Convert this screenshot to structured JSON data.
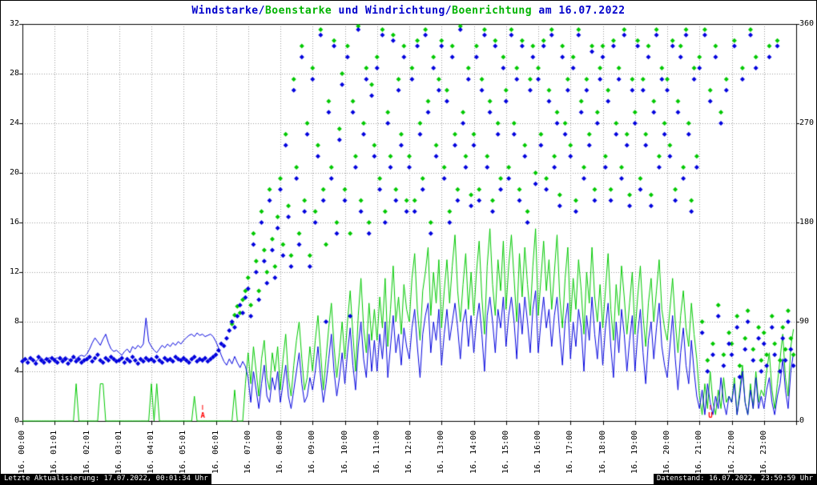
{
  "title": {
    "segments": [
      {
        "text": "Windstarke/",
        "color": "#0000cc"
      },
      {
        "text": "Boenstarke",
        "color": "#00b400"
      },
      {
        "text": " und Windrichtung/",
        "color": "#0000cc"
      },
      {
        "text": "Boenrichtung",
        "color": "#00b400"
      },
      {
        "text": " am 16.07.2022",
        "color": "#0000cc"
      }
    ]
  },
  "footer": {
    "last_update": "Letzte Aktualisierung: 17.07.2022, 00:01:34 Uhr",
    "data_state": "Datenstand: 16.07.2022, 23:59:59 Uhr"
  },
  "chart_data": {
    "type": "mixed",
    "title": "Windstarke/Boenstarke und Windrichtung/Boenrichtung am 16.07.2022",
    "grid": {
      "horizontal": true,
      "vertical": true,
      "style": "dotted"
    },
    "x_axis": {
      "unit": "time",
      "hours": 24,
      "tick_labels": [
        "16. 00:00",
        "16. 01:01",
        "16. 02:01",
        "16. 03:01",
        "16. 04:01",
        "16. 05:01",
        "16. 06:01",
        "16. 07:00",
        "16. 08:00",
        "16. 09:00",
        "16. 10:00",
        "16. 11:00",
        "16. 12:00",
        "16. 13:00",
        "16. 14:00",
        "16. 15:00",
        "16. 16:00",
        "16. 17:00",
        "16. 18:00",
        "16. 19:00",
        "16. 20:00",
        "16. 21:00",
        "16. 22:00",
        "16. 23:00"
      ]
    },
    "y_axis_left": {
      "min": 0,
      "max": 32,
      "ticks": [
        0,
        4,
        8,
        12,
        16,
        20,
        24,
        28,
        32
      ]
    },
    "y_axis_right": {
      "min": 0,
      "max": 360,
      "ticks": [
        0,
        90,
        180,
        270,
        360
      ]
    },
    "annotations": [
      {
        "label": "A",
        "hour": 5.6,
        "color": "#ff0000"
      },
      {
        "label": "U",
        "hour": 21.35,
        "color": "#ff0000"
      }
    ],
    "series": [
      {
        "name": "Windstarke",
        "type": "line",
        "axis": "left",
        "color": "#0000dd",
        "z": 2,
        "interval_minutes": 5,
        "start_minute": 0,
        "values": [
          5,
          5,
          4.9,
          5.1,
          5,
          4.8,
          5,
          5.1,
          4.9,
          5,
          5.1,
          5,
          5,
          5.1,
          4.9,
          5,
          5.2,
          5,
          4.9,
          5.1,
          5,
          5.2,
          5.3,
          5.2,
          5.4,
          5.8,
          6.3,
          6.7,
          6.4,
          6.1,
          6.6,
          7,
          6.3,
          5.8,
          5.6,
          5.7,
          5.5,
          5.3,
          5.6,
          5.8,
          5.5,
          6,
          5.8,
          6.1,
          5.9,
          6.2,
          8.3,
          6.4,
          6,
          5.7,
          5.5,
          5.8,
          6.1,
          5.9,
          6.2,
          6,
          6.3,
          6.1,
          6.4,
          6.2,
          6.5,
          6.7,
          6.9,
          7,
          6.8,
          7.1,
          6.9,
          7,
          6.8,
          6.9,
          7,
          6.8,
          6.4,
          5.9,
          5.3,
          4.8,
          4.5,
          5,
          4.6,
          5.2,
          4.7,
          4.3,
          4.8,
          4.4,
          3.5,
          1.5,
          4,
          2.5,
          1,
          3,
          4.5,
          2,
          1.5,
          3.5,
          2.5,
          4,
          1.5,
          3,
          4.5,
          2,
          1,
          2.5,
          4,
          5.5,
          3,
          1.5,
          2,
          3.5,
          2.5,
          4,
          6,
          3.5,
          1.5,
          3,
          5,
          7,
          4,
          2,
          3.5,
          5.5,
          3,
          5.5,
          7.5,
          4.5,
          2.5,
          6,
          8,
          5,
          3.5,
          7,
          4,
          6.5,
          4,
          7,
          5,
          8,
          3.5,
          6,
          8.5,
          5.5,
          7,
          4.5,
          7.5,
          6,
          5,
          7.5,
          9,
          6,
          3.5,
          7,
          8.5,
          9.5,
          5.5,
          8,
          6.5,
          9,
          4.5,
          7,
          9,
          6.5,
          8,
          9.5,
          7.5,
          5,
          8,
          9,
          6,
          8.5,
          5.5,
          8,
          9.5,
          7,
          4,
          8.5,
          10,
          8,
          5.5,
          9,
          7.5,
          10,
          6,
          8.5,
          10,
          8,
          5,
          9.5,
          7,
          10,
          8,
          5.5,
          9,
          10.5,
          5.5,
          8,
          10,
          7.5,
          9,
          6,
          8.5,
          10,
          7,
          4.5,
          8,
          9.5,
          5,
          8,
          6,
          9,
          7.5,
          4,
          8.5,
          6.5,
          10,
          7,
          5,
          8,
          4.5,
          7.5,
          9.5,
          6,
          3.5,
          8,
          5.5,
          9,
          7,
          4,
          6.5,
          8.5,
          4,
          7,
          9,
          5.5,
          3,
          6.5,
          8,
          5,
          7.5,
          9.5,
          6,
          4.5,
          3.5,
          6,
          8.5,
          5,
          2.5,
          5.5,
          7.5,
          4.5,
          3,
          6.5,
          4,
          2,
          1,
          2.5,
          0.5,
          3,
          1.5,
          0.5,
          2,
          1,
          3.5,
          1.5,
          0.5,
          2,
          1.5,
          3,
          0.5,
          2,
          4,
          1.5,
          0.5,
          2.5,
          1,
          3.5,
          1,
          2,
          1,
          2.5,
          3.5,
          1.5,
          0.5,
          2,
          3,
          5,
          2.5,
          1,
          4,
          5.5
        ]
      },
      {
        "name": "Boenstarke",
        "type": "line",
        "axis": "left",
        "color": "#00c800",
        "z": 1,
        "interval_minutes": 5,
        "start_minute": 0,
        "values": [
          0,
          0,
          0,
          0,
          0,
          0,
          0,
          0,
          0,
          0,
          0,
          0,
          0,
          0,
          0,
          0,
          0,
          0,
          0,
          0,
          3,
          0,
          0,
          0,
          0,
          0,
          0,
          0,
          0,
          3,
          3,
          0,
          0,
          0,
          0,
          0,
          0,
          0,
          0,
          0,
          0,
          0,
          0,
          0,
          0,
          0,
          0,
          0,
          3,
          0,
          3,
          0,
          0,
          0,
          0,
          0,
          0,
          0,
          0,
          0,
          0,
          0,
          0,
          0,
          2,
          0,
          0,
          0,
          0,
          0,
          0,
          0,
          0,
          0,
          0,
          0,
          0,
          0,
          0,
          2.5,
          0,
          0,
          0,
          3,
          5.5,
          3,
          6,
          4,
          2,
          5,
          6.5,
          3.5,
          2.5,
          5.5,
          4,
          6,
          2.5,
          5,
          7,
          3.5,
          2,
          4.5,
          6.5,
          8,
          5,
          2.5,
          3.5,
          6,
          4,
          6.5,
          8.5,
          5.5,
          2.5,
          5,
          7.5,
          9.5,
          6,
          3.5,
          5.5,
          8,
          5,
          8,
          10.5,
          7,
          4,
          8.5,
          11.5,
          7.5,
          5.5,
          9.5,
          6.5,
          9,
          6.5,
          10,
          7.5,
          11.5,
          6,
          9,
          12.5,
          8,
          10,
          7,
          11,
          9,
          8,
          11.5,
          13.5,
          9,
          6.5,
          10.5,
          12,
          14,
          8.5,
          12,
          9.5,
          13,
          7.5,
          10.5,
          13,
          9.5,
          12.5,
          15,
          10.5,
          8,
          11,
          13.5,
          9,
          12,
          8.5,
          12,
          14.5,
          10,
          7,
          12.5,
          15.5,
          11,
          8.5,
          13,
          10.5,
          14.5,
          9,
          12.5,
          15,
          11.5,
          8,
          13.5,
          10,
          14,
          11,
          8.5,
          12.5,
          15.5,
          8.5,
          11.5,
          14.5,
          10.5,
          13,
          9,
          12,
          15,
          10,
          7.5,
          11.5,
          14,
          8,
          11.5,
          9,
          13,
          10.5,
          7,
          12,
          9.5,
          14,
          10,
          8,
          11,
          7.5,
          10.5,
          13.5,
          9,
          6.5,
          11,
          8.5,
          12.5,
          10,
          7,
          9.5,
          12,
          7,
          10,
          12.5,
          8.5,
          6,
          9.5,
          11.5,
          8,
          10.5,
          13,
          9,
          7.5,
          6.5,
          9,
          11.5,
          8,
          5.5,
          8.5,
          10.5,
          7.5,
          6,
          9.5,
          7,
          5,
          2,
          0.5,
          3,
          1,
          4,
          1.5,
          0.5,
          2.5,
          1,
          3.5,
          1.5,
          2,
          1.5,
          3.5,
          0.5,
          2.5,
          4.5,
          1.5,
          0.5,
          3,
          1,
          4,
          1.5,
          2.5,
          2,
          4,
          5.5,
          2.5,
          1,
          3,
          5,
          7,
          3.5,
          2,
          6,
          7.4
        ]
      },
      {
        "name": "Windrichtung",
        "type": "scatter",
        "axis": "right",
        "color": "#0000dd",
        "z": 4,
        "interval_minutes": 5,
        "start_minute": 0,
        "values": [
          54,
          56,
          53,
          57,
          55,
          52,
          58,
          55,
          53,
          56,
          54,
          57,
          55,
          53,
          57,
          54,
          56,
          52,
          55,
          58,
          54,
          56,
          53,
          55,
          56,
          58,
          54,
          57,
          60,
          55,
          53,
          57,
          55,
          58,
          56,
          54,
          55,
          57,
          53,
          56,
          54,
          58,
          55,
          52,
          56,
          54,
          57,
          55,
          56,
          54,
          58,
          55,
          53,
          57,
          55,
          56,
          54,
          58,
          56,
          55,
          57,
          55,
          53,
          56,
          58,
          54,
          56,
          55,
          57,
          54,
          56,
          58,
          60,
          64,
          70,
          68,
          75,
          82,
          90,
          85,
          95,
          105,
          98,
          112,
          120,
          95,
          160,
          135,
          110,
          180,
          145,
          125,
          200,
          155,
          130,
          175,
          210,
          150,
          250,
          185,
          140,
          300,
          220,
          160,
          330,
          190,
          260,
          140,
          310,
          180,
          240,
          350,
          200,
          90,
          280,
          220,
          340,
          170,
          255,
          305,
          200,
          330,
          95,
          280,
          230,
          355,
          190,
          260,
          310,
          170,
          295,
          240,
          320,
          210,
          350,
          180,
          270,
          230,
          345,
          200,
          300,
          250,
          330,
          190,
          230,
          310,
          190,
          340,
          260,
          210,
          350,
          280,
          170,
          320,
          240,
          300,
          340,
          220,
          290,
          180,
          330,
          250,
          200,
          355,
          270,
          230,
          310,
          195,
          250,
          330,
          200,
          300,
          350,
          230,
          280,
          190,
          340,
          260,
          210,
          320,
          290,
          220,
          350,
          260,
          310,
          200,
          340,
          240,
          180,
          300,
          330,
          215,
          310,
          250,
          340,
          210,
          290,
          350,
          230,
          270,
          195,
          330,
          260,
          300,
          240,
          320,
          190,
          350,
          280,
          220,
          300,
          250,
          335,
          200,
          270,
          310,
          330,
          230,
          290,
          200,
          340,
          260,
          310,
          220,
          350,
          250,
          195,
          300,
          270,
          340,
          210,
          300,
          250,
          330,
          195,
          280,
          350,
          230,
          310,
          260,
          300,
          240,
          340,
          200,
          280,
          330,
          220,
          350,
          260,
          190,
          310,
          230,
          320,
          80,
          350,
          45,
          290,
          60,
          330,
          95,
          270,
          50,
          300,
          70,
          60,
          340,
          85,
          40,
          310,
          65,
          90,
          350,
          55,
          320,
          75,
          45,
          70,
          50,
          330,
          85,
          60,
          340,
          45,
          75,
          55,
          90,
          65,
          50
        ]
      },
      {
        "name": "Boenrichtung",
        "type": "scatter",
        "axis": "right",
        "color": "#00c800",
        "z": 3,
        "interval_minutes": 5,
        "start_minute": 390,
        "values": [
          88,
          96,
          104,
          98,
          110,
          118,
          130,
          105,
          170,
          145,
          118,
          190,
          155,
          135,
          210,
          165,
          140,
          185,
          220,
          160,
          260,
          195,
          150,
          310,
          230,
          170,
          340,
          200,
          270,
          150,
          320,
          190,
          250,
          355,
          210,
          160,
          290,
          230,
          345,
          180,
          265,
          315,
          210,
          340,
          170,
          290,
          240,
          358,
          200,
          270,
          320,
          180,
          305,
          250,
          330,
          220,
          355,
          190,
          280,
          240,
          350,
          210,
          310,
          260,
          340,
          200,
          240,
          320,
          200,
          345,
          270,
          220,
          355,
          290,
          180,
          330,
          250,
          310,
          345,
          230,
          300,
          190,
          340,
          260,
          210,
          358,
          280,
          240,
          320,
          205,
          260,
          340,
          210,
          310,
          355,
          240,
          290,
          200,
          345,
          270,
          220,
          330,
          300,
          230,
          355,
          270,
          320,
          210,
          345,
          250,
          190,
          310,
          340,
          225,
          320,
          260,
          345,
          220,
          300,
          355,
          240,
          280,
          205,
          340,
          270,
          310,
          250,
          330,
          200,
          355,
          290,
          230,
          310,
          260,
          340,
          210,
          280,
          320,
          340,
          240,
          300,
          210,
          345,
          270,
          320,
          230,
          355,
          260,
          205,
          310,
          280,
          345,
          220,
          310,
          260,
          340,
          205,
          290,
          355,
          240,
          320,
          270,
          310,
          250,
          345,
          210,
          290,
          340,
          230,
          355,
          270,
          200,
          320,
          240,
          330,
          90,
          355,
          55,
          300,
          70,
          340,
          105,
          280,
          60,
          310,
          80,
          70,
          345,
          95,
          50,
          320,
          75,
          100,
          355,
          65,
          330,
          85,
          55,
          80,
          60,
          340,
          95,
          70,
          345,
          55,
          85,
          65,
          100,
          75,
          60
        ]
      }
    ]
  }
}
